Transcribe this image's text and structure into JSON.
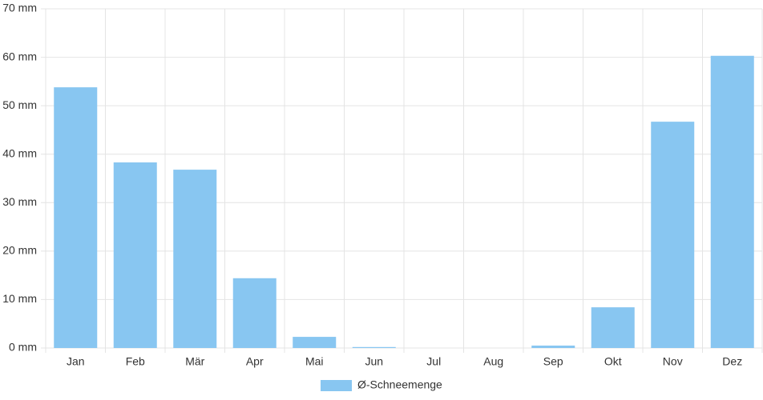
{
  "chart_data": {
    "type": "bar",
    "categories": [
      "Jan",
      "Feb",
      "Mär",
      "Apr",
      "Mai",
      "Jun",
      "Jul",
      "Aug",
      "Sep",
      "Okt",
      "Nov",
      "Dez"
    ],
    "series": [
      {
        "name": "Ø-Schneemenge",
        "color": "#88c6f1",
        "values": [
          53.8,
          38.3,
          36.8,
          14.4,
          2.3,
          0.2,
          0,
          0,
          0.5,
          8.4,
          46.7,
          60.3
        ]
      }
    ],
    "ylim": [
      0,
      70
    ],
    "yticks": [
      {
        "value": 0,
        "label": "0 mm"
      },
      {
        "value": 10,
        "label": "10 mm"
      },
      {
        "value": 20,
        "label": "20 mm"
      },
      {
        "value": 30,
        "label": "30 mm"
      },
      {
        "value": 40,
        "label": "40 mm"
      },
      {
        "value": 50,
        "label": "50 mm"
      },
      {
        "value": 60,
        "label": "60 mm"
      },
      {
        "value": 70,
        "label": "70 mm"
      }
    ],
    "grid": true,
    "legend": "bottom"
  }
}
